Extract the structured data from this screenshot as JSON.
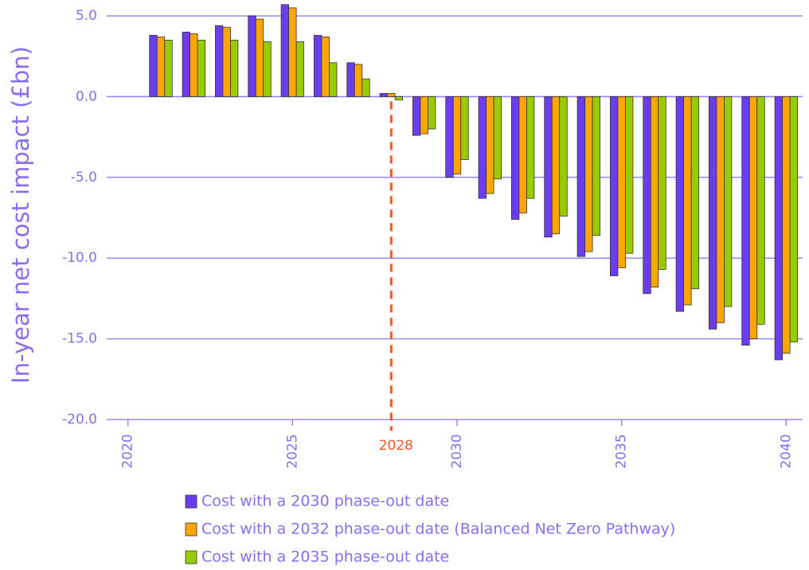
{
  "chart_data": {
    "type": "bar",
    "y_label": "In-year net cost impact (£bn)",
    "x": [
      2021,
      2022,
      2023,
      2024,
      2025,
      2026,
      2027,
      2028,
      2029,
      2030,
      2031,
      2032,
      2033,
      2034,
      2035,
      2036,
      2037,
      2038,
      2039,
      2040
    ],
    "series": [
      {
        "name": "Cost with a 2030 phase-out date",
        "color": "#6a3df0",
        "values": [
          3.8,
          4.0,
          4.4,
          5.0,
          5.7,
          3.8,
          2.1,
          0.2,
          -2.4,
          -5.0,
          -6.3,
          -7.6,
          -8.7,
          -9.9,
          -11.1,
          -12.2,
          -13.3,
          -14.4,
          -15.4,
          -16.3
        ]
      },
      {
        "name": "Cost with a 2032 phase-out date (Balanced Net Zero Pathway)",
        "color": "#ffa500",
        "values": [
          3.7,
          3.9,
          4.3,
          4.8,
          5.5,
          3.7,
          2.0,
          0.2,
          -2.3,
          -4.8,
          -6.0,
          -7.2,
          -8.5,
          -9.6,
          -10.6,
          -11.8,
          -12.9,
          -14.0,
          -15.0,
          -15.9
        ]
      },
      {
        "name": "Cost with a 2035 phase-out date",
        "color": "#99cc00",
        "values": [
          3.5,
          3.5,
          3.5,
          3.4,
          3.4,
          2.1,
          1.1,
          -0.2,
          -2.0,
          -3.9,
          -5.1,
          -6.3,
          -7.4,
          -8.6,
          -9.7,
          -10.7,
          -11.9,
          -13.0,
          -14.1,
          -15.2
        ]
      }
    ],
    "xlim": [
      2019.5,
      2040.5
    ],
    "xticks": [
      2020,
      2025,
      2030,
      2035,
      2040
    ],
    "ylim": [
      -20,
      5
    ],
    "yticks": [
      {
        "value": 5,
        "label": "5.0"
      },
      {
        "value": 0,
        "label": "0.0"
      },
      {
        "value": -5,
        "label": "-5.0"
      },
      {
        "value": -10,
        "label": "-10.0"
      },
      {
        "value": -15,
        "label": "-15.0"
      },
      {
        "value": -20,
        "label": "-20.0"
      }
    ],
    "grid": true,
    "annotations": [
      {
        "x": 2028,
        "label": "2028",
        "color": "#f05a28"
      }
    ]
  }
}
